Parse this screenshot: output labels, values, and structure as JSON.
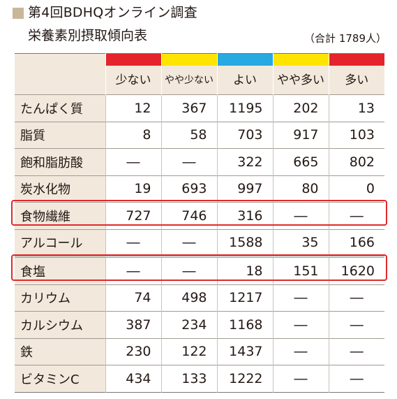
{
  "header": {
    "title_line1": "第4回BDHQオンライン調査",
    "title_line2": "栄養素別摂取傾向表",
    "total": "（合計 1789人）"
  },
  "colors": {
    "bar_few": "#e4232c",
    "bar_slightly_few": "#ffe400",
    "bar_good": "#27a9e1",
    "bar_slightly_many": "#ffe400",
    "bar_many": "#e4232c",
    "highlight": "#e02a2a"
  },
  "columns": [
    "少ない",
    "やや少ない",
    "よい",
    "やや多い",
    "多い"
  ],
  "rows": [
    {
      "label": "たんぱく質",
      "values": [
        "12",
        "367",
        "1195",
        "202",
        "13"
      ]
    },
    {
      "label": "脂質",
      "values": [
        "8",
        "58",
        "703",
        "917",
        "103"
      ]
    },
    {
      "label": "飽和脂肪酸",
      "values": [
        "―",
        "―",
        "322",
        "665",
        "802"
      ]
    },
    {
      "label": "炭水化物",
      "values": [
        "19",
        "693",
        "997",
        "80",
        "0"
      ]
    },
    {
      "label": "食物繊維",
      "values": [
        "727",
        "746",
        "316",
        "―",
        "―"
      ]
    },
    {
      "label": "アルコール",
      "values": [
        "―",
        "―",
        "1588",
        "35",
        "166"
      ]
    },
    {
      "label": "食塩",
      "values": [
        "―",
        "―",
        "18",
        "151",
        "1620"
      ]
    },
    {
      "label": "カリウム",
      "values": [
        "74",
        "498",
        "1217",
        "―",
        "―"
      ]
    },
    {
      "label": "カルシウム",
      "values": [
        "387",
        "234",
        "1168",
        "―",
        "―"
      ]
    },
    {
      "label": "鉄",
      "values": [
        "230",
        "122",
        "1437",
        "―",
        "―"
      ]
    },
    {
      "label": "ビタミンC",
      "values": [
        "434",
        "133",
        "1222",
        "―",
        "―"
      ]
    }
  ]
}
